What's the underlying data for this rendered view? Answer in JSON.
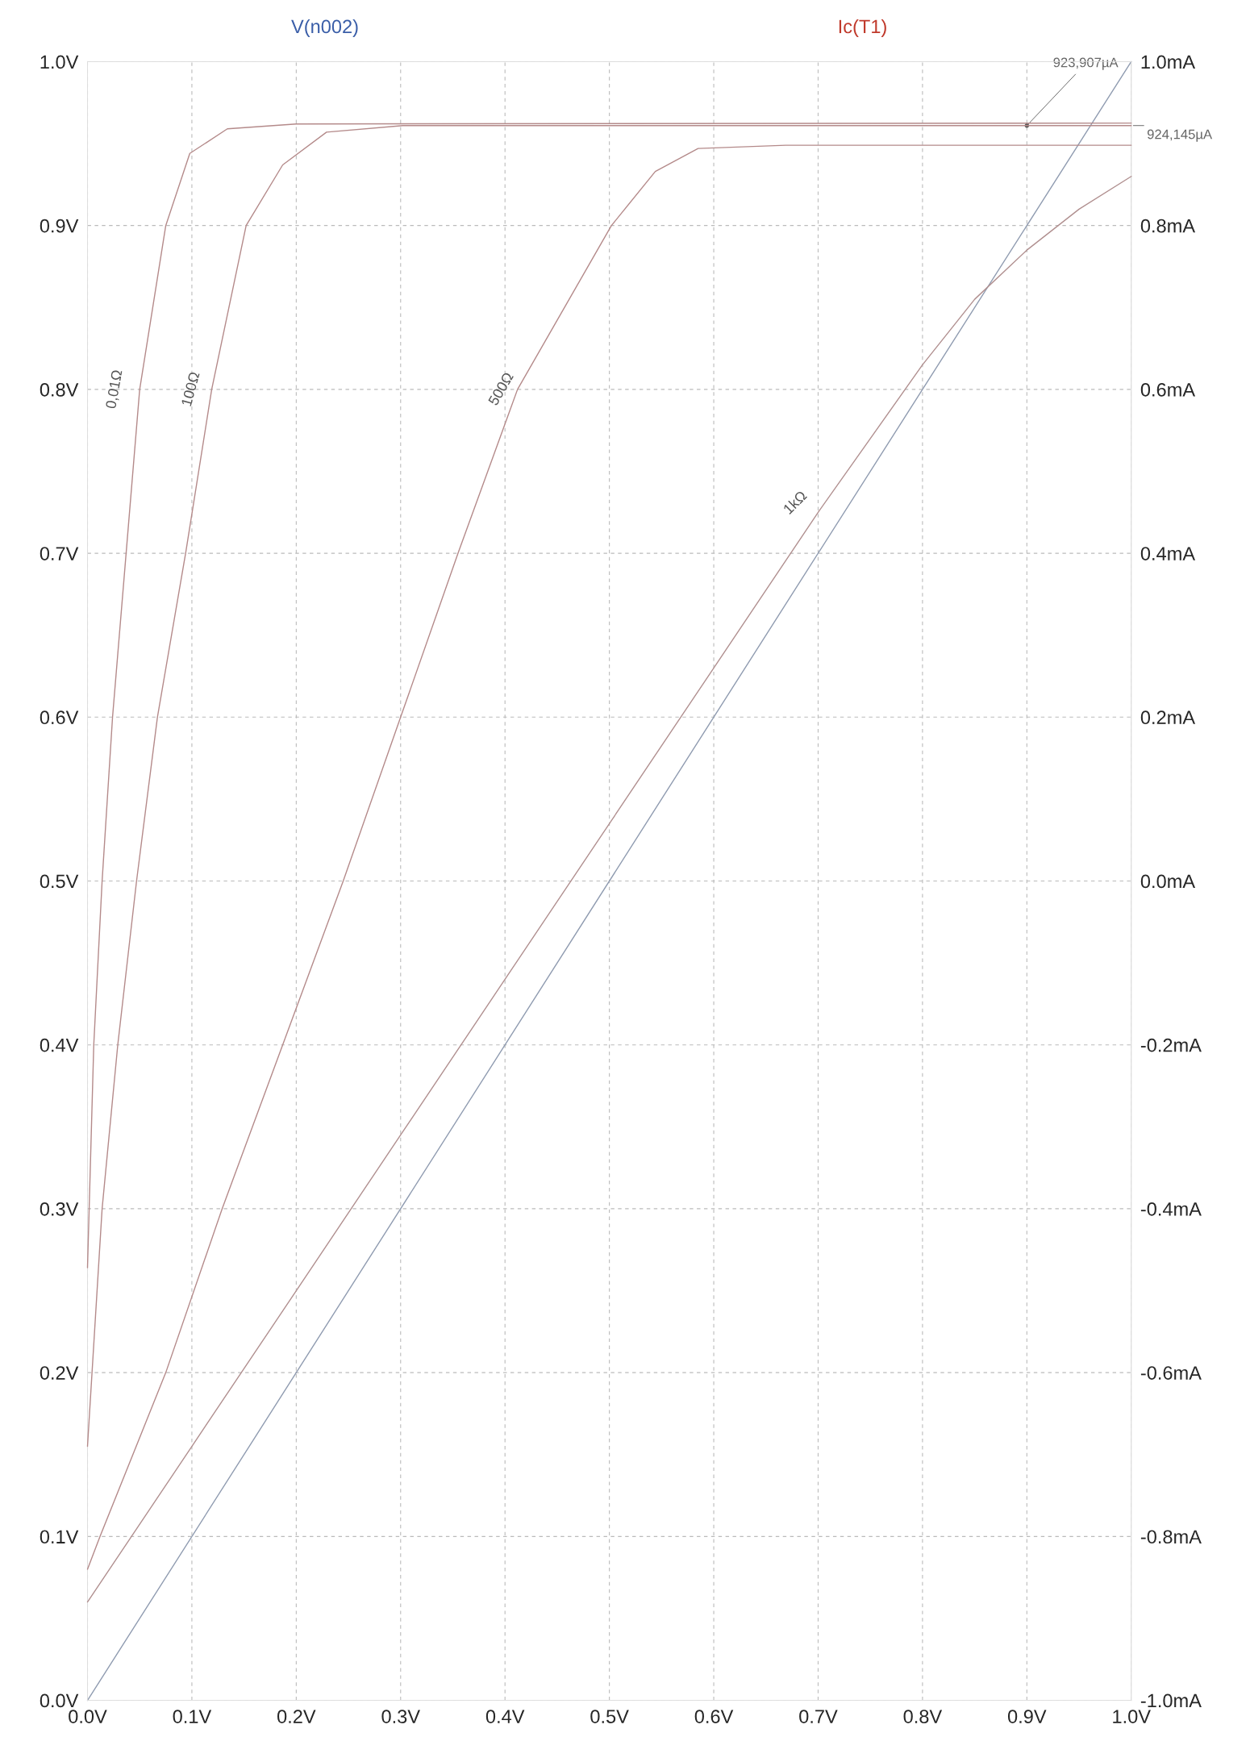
{
  "chart_data": {
    "type": "line",
    "ylabel": "V(n002)",
    "y2label": "Ic(T1)",
    "xlim": [
      0,
      1.0
    ],
    "xticks": [
      {
        "value": 0,
        "label": "0.0V"
      },
      {
        "value": 0.1,
        "label": "0.1V"
      },
      {
        "value": 0.2,
        "label": "0.2V"
      },
      {
        "value": 0.3,
        "label": "0.3V"
      },
      {
        "value": 0.4,
        "label": "0.4V"
      },
      {
        "value": 0.5,
        "label": "0.5V"
      },
      {
        "value": 0.6,
        "label": "0.6V"
      },
      {
        "value": 0.7,
        "label": "0.7V"
      },
      {
        "value": 0.8,
        "label": "0.8V"
      },
      {
        "value": 0.9,
        "label": "0.9V"
      },
      {
        "value": 1.0,
        "label": "1.0V"
      }
    ],
    "ylim": [
      0,
      1.0
    ],
    "yticks": [
      {
        "value": 0,
        "label": "0.0V"
      },
      {
        "value": 0.1,
        "label": "0.1V"
      },
      {
        "value": 0.2,
        "label": "0.2V"
      },
      {
        "value": 0.3,
        "label": "0.3V"
      },
      {
        "value": 0.4,
        "label": "0.4V"
      },
      {
        "value": 0.5,
        "label": "0.5V"
      },
      {
        "value": 0.6,
        "label": "0.6V"
      },
      {
        "value": 0.7,
        "label": "0.7V"
      },
      {
        "value": 0.8,
        "label": "0.8V"
      },
      {
        "value": 0.9,
        "label": "0.9V"
      },
      {
        "value": 1.0,
        "label": "1.0V"
      }
    ],
    "y2lim": [
      -1.0,
      1.0
    ],
    "y2ticks": [
      {
        "value": -1.0,
        "label": "-1.0mA"
      },
      {
        "value": -0.8,
        "label": "-0.8mA"
      },
      {
        "value": -0.6,
        "label": "-0.6mA"
      },
      {
        "value": -0.4,
        "label": "-0.4mA"
      },
      {
        "value": -0.2,
        "label": "-0.2mA"
      },
      {
        "value": 0,
        "label": "0.0mA"
      },
      {
        "value": 0.2,
        "label": "0.2mA"
      },
      {
        "value": 0.4,
        "label": "0.4mA"
      },
      {
        "value": 0.6,
        "label": "0.6mA"
      },
      {
        "value": 0.8,
        "label": "0.8mA"
      },
      {
        "value": 1.0,
        "label": "1.0mA"
      }
    ],
    "grid": true,
    "legend": false,
    "marker": "none",
    "line_style": "solid",
    "series": [
      {
        "color": "#8f9bb0",
        "x": [
          0,
          1.0
        ],
        "values": [
          0,
          1.0
        ]
      },
      {
        "name": "0,01Ω",
        "axis": "y2",
        "color": "#b48a8a",
        "x": [
          0,
          0.006,
          0.014,
          0.024,
          0.037,
          0.05,
          0.075,
          0.098,
          0.134,
          0.2,
          1.0
        ],
        "values": [
          -0.472,
          -0.2,
          0,
          0.2,
          0.4,
          0.6,
          0.8,
          0.888,
          0.918,
          0.924,
          0.925
        ]
      },
      {
        "name": "100Ω",
        "axis": "y2",
        "color": "#b48a8a",
        "x": [
          0,
          0.014,
          0.029,
          0.047,
          0.067,
          0.094,
          0.119,
          0.152,
          0.187,
          0.229,
          0.302,
          1.0
        ],
        "values": [
          -0.69,
          -0.4,
          -0.2,
          0,
          0.2,
          0.4,
          0.6,
          0.8,
          0.874,
          0.914,
          0.922,
          0.922
        ]
      },
      {
        "name": "500Ω",
        "axis": "y2",
        "color": "#b48a8a",
        "x": [
          0,
          0.012,
          0.075,
          0.129,
          0.187,
          0.245,
          0.3,
          0.355,
          0.412,
          0.502,
          0.544,
          0.585,
          0.669,
          1.0
        ],
        "values": [
          -0.84,
          -0.8,
          -0.6,
          -0.4,
          -0.2,
          0,
          0.2,
          0.4,
          0.6,
          0.8,
          0.866,
          0.894,
          0.898,
          0.898
        ]
      },
      {
        "name": "1kΩ",
        "axis": "y2",
        "color": "#b08f8f",
        "x": [
          0,
          0.1,
          0.2,
          0.3,
          0.4,
          0.5,
          0.6,
          0.7,
          0.8,
          0.85,
          0.9,
          0.95,
          1.0
        ],
        "values": [
          -0.88,
          -0.69,
          -0.5,
          -0.31,
          -0.12,
          0.07,
          0.26,
          0.45,
          0.63,
          0.71,
          0.77,
          0.82,
          0.86
        ]
      }
    ],
    "annotations": [
      {
        "text": "923,907µA",
        "x": 0.9,
        "y": 0.961
      },
      "924,145µA"
    ]
  }
}
